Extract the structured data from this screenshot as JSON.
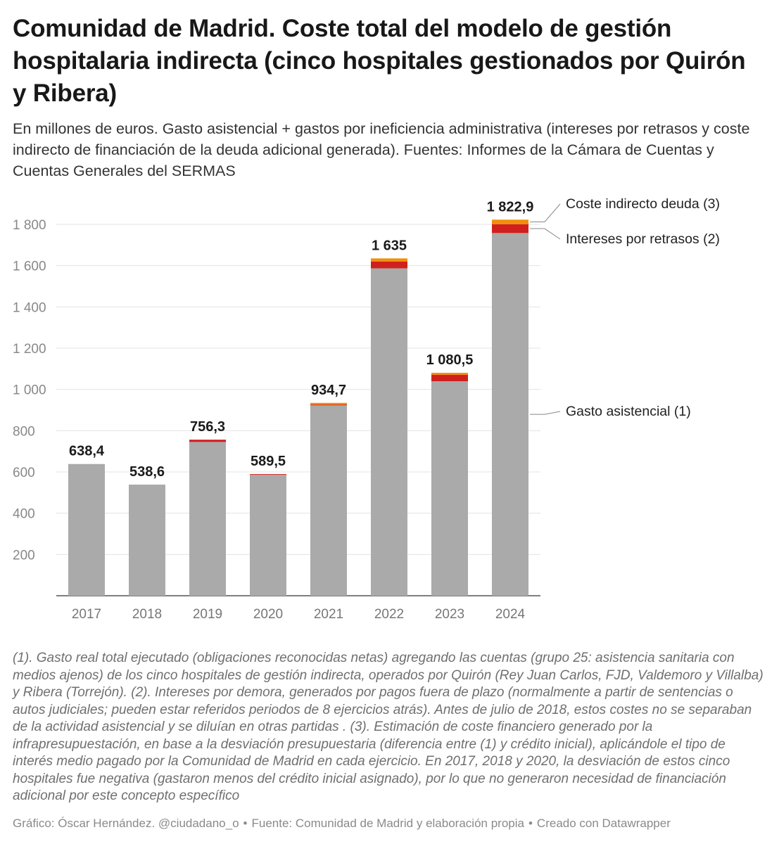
{
  "header": {
    "title": "Comunidad de Madrid. Coste total del modelo de gestión hospitalaria indirecta (cinco hospitales gestionados por Quirón y Ribera)",
    "subtitle": "En millones de euros. Gasto asistencial + gastos por ineficiencia administrativa (intereses por retrasos y coste indirecto de financiación de la deuda adicional generada). Fuentes: Informes de la Cámara de Cuentas y Cuentas Generales del SERMAS"
  },
  "chart_data": {
    "type": "bar",
    "stacked": true,
    "categories": [
      "2017",
      "2018",
      "2019",
      "2020",
      "2021",
      "2022",
      "2023",
      "2024"
    ],
    "series": [
      {
        "name": "Gasto asistencial (1)",
        "color": "#aaaaaa",
        "values": [
          638.4,
          538.6,
          745.3,
          586.0,
          922.7,
          1587.0,
          1039.5,
          1757.9
        ]
      },
      {
        "name": "Intereses por retrasos (2)",
        "color": "#d0201d",
        "values": [
          0,
          0,
          11.0,
          3.5,
          4.0,
          33.0,
          31.0,
          43.0
        ]
      },
      {
        "name": "Coste indirecto deuda (3)",
        "color": "#f28e0c",
        "values": [
          0,
          0,
          0,
          0,
          8.0,
          15.0,
          10.0,
          22.0
        ]
      }
    ],
    "totals": [
      "638,4",
      "538,6",
      "756,3",
      "589,5",
      "934,7",
      "1 635",
      "1 080,5",
      "1 822,9"
    ],
    "y_ticks": [
      200,
      400,
      600,
      800,
      1000,
      1200,
      1400,
      1600,
      1800
    ],
    "y_tick_labels": [
      "200",
      "400",
      "600",
      "800",
      "1 000",
      "1 200",
      "1 400",
      "1 600",
      "1 800"
    ],
    "ylim": [
      0,
      1800
    ],
    "grid": true,
    "legend": "right, direct labels"
  },
  "notes": "(1). Gasto real total ejecutado (obligaciones reconocidas netas) agregando las cuentas (grupo 25: asistencia sanitaria con medios ajenos) de los cinco hospitales de gestión indirecta, operados por Quirón (Rey Juan Carlos, FJD, Valdemoro y Villalba) y Ribera (Torrejón). (2). Intereses por demora, generados por pagos fuera de plazo (normalmente a partir de sentencias o autos judiciales; pueden estar referidos periodos de 8 ejercicios atrás). Antes de julio de 2018, estos costes no se separaban de la actividad asistencial y se diluían en otras partidas . (3). Estimación de coste financiero generado por la infrapresupuestación, en base a la desviación presupuestaria (diferencia entre (1) y crédito inicial), aplicándole el tipo de interés medio pagado por la Comunidad de Madrid en cada ejercicio. En 2017, 2018 y 2020, la desviación de estos cinco hospitales fue negativa (gastaron menos del crédito inicial asignado), por lo que no generaron necesidad de financiación adicional por este concepto específico",
  "footer": {
    "credit": "Gráfico: Óscar Hernández. @ciudadano_o",
    "source": "Fuente: Comunidad de Madrid y elaboración propia",
    "tool": "Creado con Datawrapper",
    "separator": "•"
  }
}
